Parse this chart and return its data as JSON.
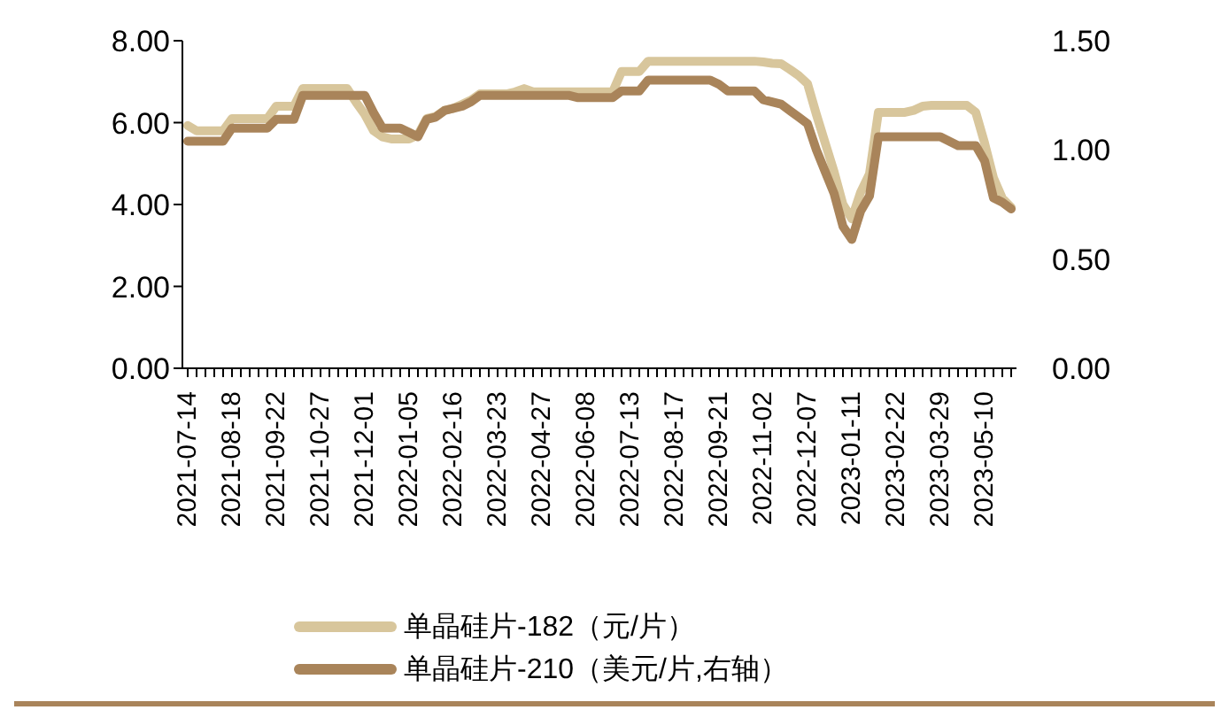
{
  "chart_data": {
    "type": "line",
    "categories": [
      "2021-07-14",
      null,
      null,
      null,
      null,
      "2021-08-18",
      null,
      null,
      null,
      null,
      "2021-09-22",
      null,
      null,
      null,
      null,
      "2021-10-27",
      null,
      null,
      null,
      null,
      "2021-12-01",
      null,
      null,
      null,
      null,
      "2022-01-05",
      null,
      null,
      null,
      null,
      "2022-02-16",
      null,
      null,
      null,
      null,
      "2022-03-23",
      null,
      null,
      null,
      null,
      "2022-04-27",
      null,
      null,
      null,
      null,
      "2022-06-08",
      null,
      null,
      null,
      null,
      "2022-07-13",
      null,
      null,
      null,
      null,
      "2022-08-17",
      null,
      null,
      null,
      null,
      "2022-09-21",
      null,
      null,
      null,
      null,
      "2022-11-02",
      null,
      null,
      null,
      null,
      "2022-12-07",
      null,
      null,
      null,
      null,
      "2023-01-11",
      null,
      null,
      null,
      null,
      "2023-02-22",
      null,
      null,
      null,
      null,
      "2023-03-29",
      null,
      null,
      null,
      null,
      "2023-05-10",
      null,
      null,
      null
    ],
    "series": [
      {
        "name": "单晶硅片-182（元/片）",
        "color": "#d8c69c",
        "values": [
          5.93,
          5.8,
          5.8,
          5.8,
          5.8,
          6.1,
          6.1,
          6.1,
          6.1,
          6.1,
          6.4,
          6.4,
          6.4,
          6.83,
          6.83,
          6.83,
          6.83,
          6.83,
          6.83,
          6.5,
          6.2,
          5.8,
          5.65,
          5.6,
          5.6,
          5.6,
          5.7,
          6.1,
          6.15,
          6.3,
          6.35,
          6.45,
          6.55,
          6.7,
          6.7,
          6.7,
          6.7,
          6.75,
          6.83,
          6.75,
          6.75,
          6.75,
          6.75,
          6.75,
          6.75,
          6.75,
          6.75,
          6.75,
          6.75,
          7.25,
          7.25,
          7.25,
          7.5,
          7.5,
          7.5,
          7.5,
          7.5,
          7.5,
          7.5,
          7.5,
          7.5,
          7.5,
          7.5,
          7.5,
          7.5,
          7.48,
          7.45,
          7.44,
          7.3,
          7.15,
          6.95,
          6.2,
          5.5,
          4.8,
          4.0,
          3.65,
          4.3,
          4.75,
          6.25,
          6.25,
          6.25,
          6.25,
          6.3,
          6.4,
          6.42,
          6.42,
          6.42,
          6.42,
          6.42,
          6.25,
          5.5,
          4.65,
          4.15,
          3.93
        ]
      },
      {
        "name": "单晶硅片-210（美元/片,右轴）",
        "color": "#a9845a",
        "axis": "y2",
        "values": [
          1.04,
          1.04,
          1.04,
          1.04,
          1.04,
          1.1,
          1.1,
          1.1,
          1.1,
          1.1,
          1.14,
          1.14,
          1.14,
          1.25,
          1.25,
          1.25,
          1.25,
          1.25,
          1.25,
          1.25,
          1.25,
          1.17,
          1.1,
          1.1,
          1.1,
          1.08,
          1.06,
          1.14,
          1.15,
          1.18,
          1.19,
          1.2,
          1.22,
          1.25,
          1.25,
          1.25,
          1.25,
          1.25,
          1.25,
          1.25,
          1.25,
          1.25,
          1.25,
          1.25,
          1.24,
          1.24,
          1.24,
          1.24,
          1.24,
          1.27,
          1.27,
          1.27,
          1.32,
          1.32,
          1.32,
          1.32,
          1.32,
          1.32,
          1.32,
          1.32,
          1.3,
          1.27,
          1.27,
          1.27,
          1.27,
          1.23,
          1.22,
          1.21,
          1.18,
          1.15,
          1.12,
          1.0,
          0.9,
          0.8,
          0.65,
          0.59,
          0.72,
          0.79,
          1.06,
          1.06,
          1.06,
          1.06,
          1.06,
          1.06,
          1.06,
          1.06,
          1.04,
          1.02,
          1.02,
          1.02,
          0.95,
          0.78,
          0.76,
          0.73
        ]
      }
    ],
    "ylim": [
      0,
      8
    ],
    "yticks": [
      {
        "value": 0,
        "label": "0.00"
      },
      {
        "value": 2,
        "label": "2.00"
      },
      {
        "value": 4,
        "label": "4.00"
      },
      {
        "value": 6,
        "label": "6.00"
      },
      {
        "value": 8,
        "label": "8.00"
      }
    ],
    "y2lim": [
      0,
      1.5
    ],
    "y2ticks": [
      {
        "value": 0,
        "label": "0.00"
      },
      {
        "value": 0.5,
        "label": "0.50"
      },
      {
        "value": 1,
        "label": "1.00"
      },
      {
        "value": 1.5,
        "label": "1.50"
      }
    ],
    "grid": false,
    "legend": "bottom",
    "marker": "none",
    "line_style": "solid"
  }
}
